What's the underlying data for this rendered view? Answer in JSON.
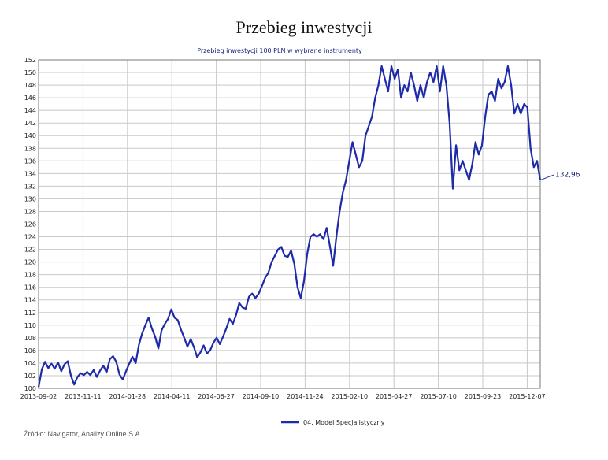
{
  "page": {
    "title": "Przebieg inwestycji",
    "source": "Źródło: Navigator, Analizy Online S.A."
  },
  "chart_data": {
    "type": "line",
    "title": "Przebieg inwestycji",
    "subtitle": "Przebieg inwestycji 100 PLN w wybrane instrumenty",
    "xlabel": "",
    "ylabel": "",
    "ylim": [
      100,
      152
    ],
    "y_ticks": [
      100,
      102,
      104,
      106,
      108,
      110,
      112,
      114,
      116,
      118,
      120,
      122,
      124,
      126,
      128,
      130,
      132,
      134,
      136,
      138,
      140,
      142,
      144,
      146,
      148,
      150,
      152
    ],
    "x_tick_labels": [
      "2013-09-02",
      "2013-11-11",
      "2014-01-28",
      "2014-04-11",
      "2014-06-27",
      "2014-09-10",
      "2014-11-24",
      "2015-02-10",
      "2015-04-27",
      "2015-07-10",
      "2015-09-23",
      "2015-12-07"
    ],
    "grid": true,
    "legend_position": "bottom",
    "line_color": "#1e2aa8",
    "series": [
      {
        "name": "04. Model Specjalistyczny",
        "end_label": "132,96",
        "points": [
          [
            0,
            100.2
          ],
          [
            1,
            103.0
          ],
          [
            2,
            104.2
          ],
          [
            3,
            103.2
          ],
          [
            4,
            103.9
          ],
          [
            5,
            103.1
          ],
          [
            6,
            104.1
          ],
          [
            7,
            102.7
          ],
          [
            8,
            103.8
          ],
          [
            9,
            104.3
          ],
          [
            10,
            102.0
          ],
          [
            11,
            100.6
          ],
          [
            12,
            101.8
          ],
          [
            13,
            102.4
          ],
          [
            14,
            102.1
          ],
          [
            15,
            102.6
          ],
          [
            16,
            102.1
          ],
          [
            17,
            102.9
          ],
          [
            18,
            101.8
          ],
          [
            19,
            102.8
          ],
          [
            20,
            103.6
          ],
          [
            21,
            102.5
          ],
          [
            22,
            104.6
          ],
          [
            23,
            105.1
          ],
          [
            24,
            104.2
          ],
          [
            25,
            102.2
          ],
          [
            26,
            101.4
          ],
          [
            27,
            102.7
          ],
          [
            28,
            103.9
          ],
          [
            29,
            105.0
          ],
          [
            30,
            104.0
          ],
          [
            31,
            106.9
          ],
          [
            32,
            108.7
          ],
          [
            33,
            110.0
          ],
          [
            34,
            111.2
          ],
          [
            35,
            109.5
          ],
          [
            36,
            108.2
          ],
          [
            37,
            106.3
          ],
          [
            38,
            109.2
          ],
          [
            39,
            110.2
          ],
          [
            40,
            111.0
          ],
          [
            41,
            112.5
          ],
          [
            42,
            111.2
          ],
          [
            43,
            110.8
          ],
          [
            44,
            109.3
          ],
          [
            45,
            108.0
          ],
          [
            46,
            106.6
          ],
          [
            47,
            107.8
          ],
          [
            48,
            106.5
          ],
          [
            49,
            104.9
          ],
          [
            50,
            105.7
          ],
          [
            51,
            106.8
          ],
          [
            52,
            105.5
          ],
          [
            53,
            106.0
          ],
          [
            54,
            107.2
          ],
          [
            55,
            108.0
          ],
          [
            56,
            107.0
          ],
          [
            57,
            108.2
          ],
          [
            58,
            109.5
          ],
          [
            59,
            111.0
          ],
          [
            60,
            110.2
          ],
          [
            61,
            111.6
          ],
          [
            62,
            113.5
          ],
          [
            63,
            112.8
          ],
          [
            64,
            112.6
          ],
          [
            65,
            114.5
          ],
          [
            66,
            115.0
          ],
          [
            67,
            114.3
          ],
          [
            68,
            115.0
          ],
          [
            69,
            116.2
          ],
          [
            70,
            117.5
          ],
          [
            71,
            118.3
          ],
          [
            72,
            120.0
          ],
          [
            73,
            121.0
          ],
          [
            74,
            122.0
          ],
          [
            75,
            122.4
          ],
          [
            76,
            121.0
          ],
          [
            77,
            120.8
          ],
          [
            78,
            121.8
          ],
          [
            79,
            119.7
          ],
          [
            80,
            116.0
          ],
          [
            81,
            114.3
          ],
          [
            82,
            117.0
          ],
          [
            83,
            121.3
          ],
          [
            84,
            124.0
          ],
          [
            85,
            124.4
          ],
          [
            86,
            124.0
          ],
          [
            87,
            124.4
          ],
          [
            88,
            123.6
          ],
          [
            89,
            125.4
          ],
          [
            90,
            122.5
          ],
          [
            91,
            119.4
          ],
          [
            92,
            124.0
          ],
          [
            93,
            128.0
          ],
          [
            94,
            131.0
          ],
          [
            95,
            133.0
          ],
          [
            96,
            136.0
          ],
          [
            97,
            139.0
          ],
          [
            98,
            137.0
          ],
          [
            99,
            135.0
          ],
          [
            100,
            136.0
          ],
          [
            101,
            140.0
          ],
          [
            102,
            141.5
          ],
          [
            103,
            143.0
          ],
          [
            104,
            146.0
          ],
          [
            105,
            148.0
          ],
          [
            106,
            151.0
          ],
          [
            107,
            149.0
          ],
          [
            108,
            147.0
          ],
          [
            109,
            151.0
          ],
          [
            110,
            149.0
          ],
          [
            111,
            150.5
          ],
          [
            112,
            146.0
          ],
          [
            113,
            148.0
          ],
          [
            114,
            147.0
          ],
          [
            115,
            150.0
          ],
          [
            116,
            148.0
          ],
          [
            117,
            145.5
          ],
          [
            118,
            148.0
          ],
          [
            119,
            146.0
          ],
          [
            120,
            148.5
          ],
          [
            121,
            150.0
          ],
          [
            122,
            148.5
          ],
          [
            123,
            151.0
          ],
          [
            124,
            147.0
          ],
          [
            125,
            151.0
          ],
          [
            126,
            148.0
          ],
          [
            127,
            142.0
          ],
          [
            128,
            131.6
          ],
          [
            129,
            138.5
          ],
          [
            130,
            134.5
          ],
          [
            131,
            136.0
          ],
          [
            132,
            134.5
          ],
          [
            133,
            133.0
          ],
          [
            134,
            135.5
          ],
          [
            135,
            139.0
          ],
          [
            136,
            137.0
          ],
          [
            137,
            138.5
          ],
          [
            138,
            143.0
          ],
          [
            139,
            146.5
          ],
          [
            140,
            147.0
          ],
          [
            141,
            145.5
          ],
          [
            142,
            149.0
          ],
          [
            143,
            147.5
          ],
          [
            144,
            148.5
          ],
          [
            145,
            151.0
          ],
          [
            146,
            148.0
          ],
          [
            147,
            143.5
          ],
          [
            148,
            145.0
          ],
          [
            149,
            143.5
          ],
          [
            150,
            145.0
          ],
          [
            151,
            144.5
          ],
          [
            152,
            138.0
          ],
          [
            153,
            135.0
          ],
          [
            154,
            136.0
          ],
          [
            155,
            132.96
          ]
        ]
      }
    ]
  }
}
